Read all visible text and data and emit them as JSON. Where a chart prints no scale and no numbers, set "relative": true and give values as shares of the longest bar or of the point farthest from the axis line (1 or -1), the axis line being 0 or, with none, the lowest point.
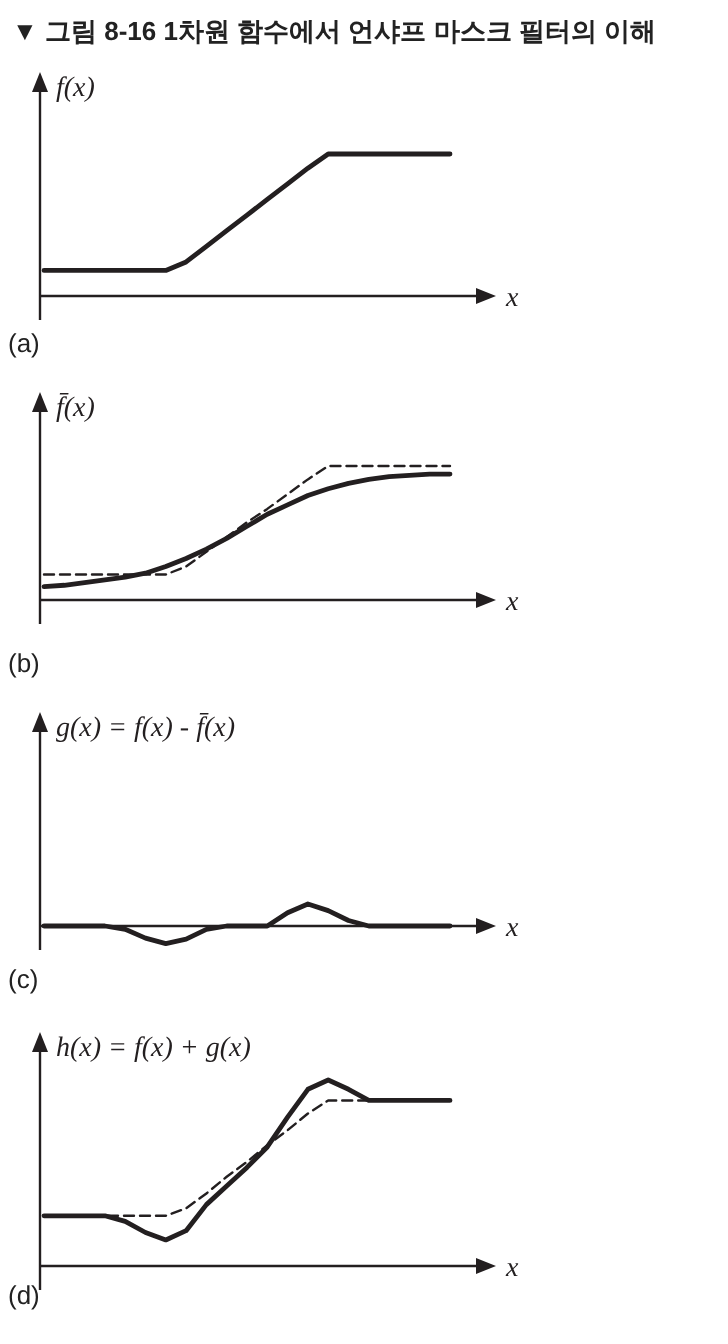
{
  "chart_data": [
    {
      "type": "line",
      "title": "▼ 그림 8-16 1차원 함수에서 언샤프 마스크 필터의 이해",
      "ylabel": "f(x)",
      "xlabel": "x",
      "annotations": [
        "(a)"
      ],
      "relative": true,
      "categories": [
        null,
        null,
        null,
        null,
        null,
        null,
        null,
        null,
        null,
        null,
        null,
        null,
        null,
        null,
        null,
        null,
        null,
        null,
        null,
        null,
        null
      ],
      "series": [
        {
          "color": "#231f20",
          "line_style": "solid",
          "values": [
            0.18,
            0.18,
            0.18,
            0.18,
            0.18,
            0.18,
            0.18,
            0.24,
            0.35,
            0.46,
            0.57,
            0.68,
            0.79,
            0.9,
            1,
            1,
            1,
            1,
            1,
            1,
            1
          ]
        }
      ]
    },
    {
      "type": "line",
      "ylabel": "f̄(x)",
      "xlabel": "x",
      "annotations": [
        "(b)"
      ],
      "relative": true,
      "categories": [
        null,
        null,
        null,
        null,
        null,
        null,
        null,
        null,
        null,
        null,
        null,
        null,
        null,
        null,
        null,
        null,
        null,
        null,
        null,
        null,
        null
      ],
      "series": [
        {
          "color": "#231f20",
          "line_style": "dashed",
          "values": [
            0.19,
            0.19,
            0.19,
            0.19,
            0.19,
            0.19,
            0.19,
            0.25,
            0.36,
            0.47,
            0.58,
            0.68,
            0.79,
            0.9,
            1,
            1,
            1,
            1,
            1,
            1,
            1
          ]
        },
        {
          "color": "#231f20",
          "line_style": "solid",
          "values": [
            0.1,
            0.11,
            0.13,
            0.15,
            0.17,
            0.2,
            0.25,
            0.31,
            0.38,
            0.46,
            0.55,
            0.64,
            0.71,
            0.78,
            0.83,
            0.87,
            0.9,
            0.92,
            0.93,
            0.94,
            0.94
          ]
        }
      ]
    },
    {
      "type": "line",
      "ylabel": "g(x) = f(x) - f̄(x)",
      "xlabel": "x",
      "annotations": [
        "(c)"
      ],
      "relative": true,
      "categories": [
        null,
        null,
        null,
        null,
        null,
        null,
        null,
        null,
        null,
        null,
        null,
        null,
        null,
        null,
        null,
        null,
        null,
        null,
        null,
        null,
        null
      ],
      "series": [
        {
          "color": "#231f20",
          "line_style": "solid",
          "values": [
            0,
            0,
            0,
            0,
            -0.15,
            -0.55,
            -0.8,
            -0.6,
            -0.15,
            0,
            0,
            0,
            0.6,
            1,
            0.7,
            0.25,
            0,
            0,
            0,
            0,
            0
          ]
        }
      ]
    },
    {
      "type": "line",
      "ylabel": "h(x) = f(x) + g(x)",
      "xlabel": "x",
      "annotations": [
        "(d)"
      ],
      "relative": true,
      "categories": [
        null,
        null,
        null,
        null,
        null,
        null,
        null,
        null,
        null,
        null,
        null,
        null,
        null,
        null,
        null,
        null,
        null,
        null,
        null,
        null,
        null
      ],
      "series": [
        {
          "color": "#231f20",
          "line_style": "dashed",
          "values": [
            0.27,
            0.27,
            0.27,
            0.27,
            0.27,
            0.27,
            0.27,
            0.31,
            0.39,
            0.48,
            0.56,
            0.65,
            0.73,
            0.82,
            0.89,
            0.89,
            0.89,
            0.89,
            0.89,
            0.89,
            0.89
          ]
        },
        {
          "color": "#231f20",
          "line_style": "solid",
          "values": [
            0.27,
            0.27,
            0.27,
            0.27,
            0.24,
            0.18,
            0.14,
            0.19,
            0.33,
            0.43,
            0.53,
            0.64,
            0.8,
            0.95,
            1,
            0.95,
            0.89,
            0.89,
            0.89,
            0.89,
            0.89
          ]
        }
      ]
    }
  ]
}
